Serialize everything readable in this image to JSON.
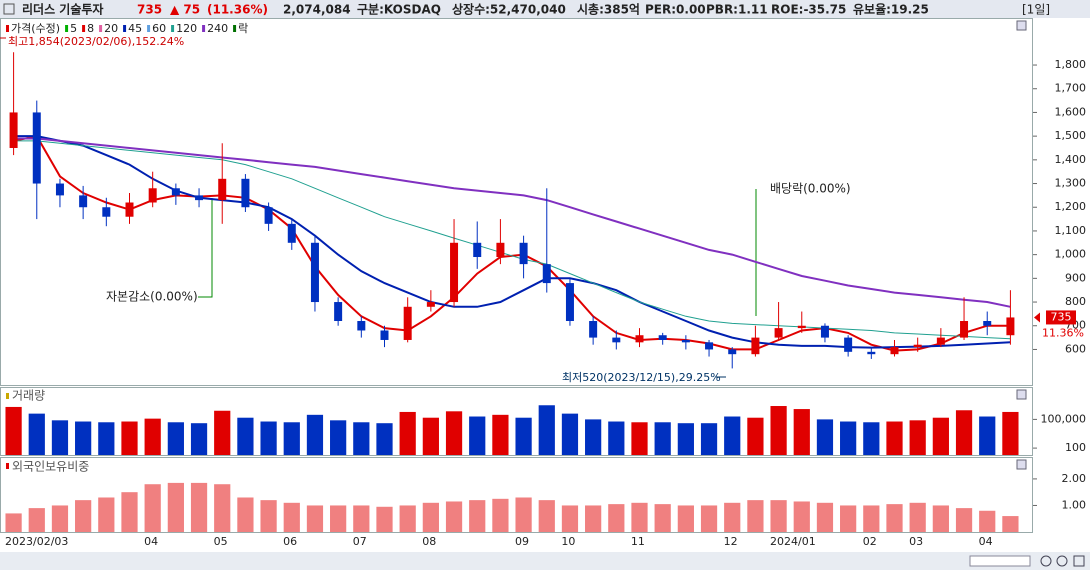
{
  "header": {
    "name": "리더스 기술투자",
    "price": "735",
    "change": "▲ 75",
    "change_pct": "(11.36%)",
    "volume": "2,074,084",
    "market": "구분:KOSDAQ",
    "shares": "상장수:52,470,040",
    "cap": "시총:385억",
    "per": "PER:0.00",
    "pbr": "PBR:1.11",
    "roe": "ROE:-35.75",
    "reserve": "유보율:19.25",
    "period": "[1일]"
  },
  "chart_data": [
    {
      "type": "candlestick",
      "legend": [
        {
          "label": "가격(수정)",
          "color": "#e00000"
        },
        {
          "label": "5",
          "color": "#00b000"
        },
        {
          "label": "8",
          "color": "#e00000"
        },
        {
          "label": "20",
          "color": "#e060a0"
        },
        {
          "label": "45",
          "color": "#0020b0"
        },
        {
          "label": "60",
          "color": "#60a0e0"
        },
        {
          "label": "120",
          "color": "#20a090"
        },
        {
          "label": "240",
          "color": "#8030c0"
        },
        {
          "label": "락",
          "color": "#007000"
        }
      ],
      "categories": [
        "2023/02/03",
        null,
        null,
        null,
        null,
        null,
        "04",
        null,
        null,
        "05",
        null,
        null,
        "06",
        null,
        null,
        "07",
        null,
        null,
        "08",
        null,
        null,
        null,
        "09",
        null,
        "10",
        null,
        null,
        "11",
        null,
        null,
        null,
        "12",
        null,
        "2024/01",
        null,
        null,
        null,
        "02",
        null,
        "03",
        null,
        null,
        "04",
        null
      ],
      "open": [
        1450,
        1600,
        1300,
        1250,
        1200,
        1160,
        1220,
        1280,
        1250,
        1230,
        1320,
        1200,
        1130,
        1050,
        800,
        720,
        680,
        640,
        780,
        800,
        1050,
        990,
        1050,
        960,
        880,
        720,
        650,
        630,
        660,
        640,
        630,
        600,
        580,
        650,
        690,
        700,
        650,
        590,
        580,
        610,
        620,
        650,
        720,
        660
      ],
      "high": [
        1854,
        1650,
        1320,
        1290,
        1240,
        1260,
        1350,
        1300,
        1280,
        1470,
        1340,
        1220,
        1150,
        1080,
        820,
        740,
        700,
        820,
        850,
        1150,
        1140,
        1150,
        1080,
        1280,
        900,
        740,
        680,
        690,
        670,
        660,
        640,
        610,
        700,
        800,
        760,
        710,
        660,
        610,
        640,
        650,
        690,
        820,
        760,
        850
      ],
      "low": [
        1420,
        1150,
        1200,
        1150,
        1120,
        1130,
        1200,
        1210,
        1200,
        1130,
        1180,
        1100,
        1020,
        760,
        700,
        650,
        610,
        630,
        760,
        780,
        940,
        960,
        900,
        840,
        700,
        620,
        600,
        610,
        620,
        600,
        570,
        520,
        570,
        640,
        670,
        630,
        570,
        560,
        570,
        590,
        610,
        640,
        660,
        620
      ],
      "close": [
        1600,
        1300,
        1250,
        1200,
        1160,
        1220,
        1280,
        1250,
        1230,
        1320,
        1200,
        1130,
        1050,
        800,
        720,
        680,
        640,
        780,
        800,
        1050,
        990,
        1050,
        960,
        880,
        720,
        650,
        630,
        660,
        640,
        630,
        600,
        580,
        650,
        690,
        700,
        650,
        590,
        580,
        610,
        620,
        650,
        720,
        700,
        735
      ],
      "up_color": "#e00000",
      "down_color": "#0030c0",
      "series": [
        {
          "color": "#e00000",
          "width": 2,
          "values": [
            1480,
            1500,
            1330,
            1260,
            1220,
            1190,
            1230,
            1250,
            1245,
            1250,
            1240,
            1190,
            1110,
            950,
            830,
            740,
            690,
            680,
            740,
            820,
            920,
            990,
            1000,
            950,
            850,
            740,
            670,
            640,
            645,
            640,
            625,
            600,
            600,
            640,
            680,
            690,
            670,
            620,
            595,
            600,
            625,
            670,
            700,
            700
          ]
        },
        {
          "color": "#0020b0",
          "width": 2,
          "values": [
            1500,
            1500,
            1480,
            1460,
            1420,
            1380,
            1320,
            1270,
            1240,
            1230,
            1220,
            1200,
            1150,
            1080,
            1000,
            930,
            880,
            840,
            800,
            780,
            780,
            800,
            850,
            900,
            900,
            880,
            850,
            800,
            760,
            720,
            680,
            650,
            630,
            620,
            615,
            615,
            610,
            608,
            610,
            612,
            615,
            620,
            625,
            630
          ]
        },
        {
          "color": "#20a090",
          "width": 1,
          "values": [
            1480,
            1480,
            1470,
            1460,
            1450,
            1440,
            1430,
            1420,
            1410,
            1400,
            1380,
            1350,
            1320,
            1280,
            1240,
            1200,
            1160,
            1130,
            1100,
            1070,
            1040,
            1010,
            980,
            960,
            920,
            880,
            840,
            800,
            770,
            740,
            720,
            710,
            705,
            700,
            695,
            690,
            685,
            680,
            670,
            665,
            660,
            655,
            650,
            645
          ]
        },
        {
          "color": "#8030c0",
          "width": 2,
          "values": [
            1490,
            1490,
            1480,
            1470,
            1460,
            1450,
            1440,
            1430,
            1420,
            1410,
            1400,
            1390,
            1380,
            1370,
            1355,
            1340,
            1325,
            1310,
            1295,
            1280,
            1270,
            1260,
            1250,
            1230,
            1200,
            1170,
            1140,
            1110,
            1080,
            1050,
            1020,
            1000,
            970,
            940,
            910,
            890,
            870,
            855,
            840,
            830,
            820,
            810,
            800,
            780
          ]
        }
      ],
      "ylim": [
        450,
        1990
      ],
      "yticks": [
        600,
        700,
        800,
        900,
        {
          "value": 1000,
          "label": "1,000"
        },
        {
          "value": 1100,
          "label": "1,100"
        },
        {
          "value": 1200,
          "label": "1,200"
        },
        {
          "value": 1300,
          "label": "1,300"
        },
        {
          "value": 1400,
          "label": "1,400"
        },
        {
          "value": 1500,
          "label": "1,500"
        },
        {
          "value": 1600,
          "label": "1,600"
        },
        {
          "value": 1700,
          "label": "1,700"
        },
        {
          "value": 1800,
          "label": "1,800"
        }
      ],
      "annotations": {
        "high": "최고1,854(2023/02/06),152.24%",
        "capital": "자본감소(0.00%)",
        "dividend": "배당락(0.00%)",
        "low": "최저520(2023/12/15),29.25%"
      },
      "current_pct": "11.36%"
    },
    {
      "type": "bar",
      "title": "거래량",
      "log": true,
      "values": [
        2000000,
        400000,
        80000,
        60000,
        50000,
        60000,
        120000,
        50000,
        40000,
        800000,
        150000,
        60000,
        50000,
        300000,
        80000,
        50000,
        40000,
        600000,
        150000,
        700000,
        200000,
        300000,
        150000,
        3000000,
        400000,
        100000,
        60000,
        50000,
        50000,
        40000,
        40000,
        200000,
        150000,
        2500000,
        1200000,
        100000,
        60000,
        50000,
        60000,
        80000,
        150000,
        900000,
        200000,
        600000
      ],
      "ylim": [
        19,
        150000000
      ],
      "yticks": [
        100,
        {
          "value": 100000,
          "label": "100,000"
        }
      ]
    },
    {
      "type": "bar",
      "title": "외국인보유비중",
      "color": "#f08080",
      "values": [
        0.7,
        0.9,
        1.0,
        1.2,
        1.3,
        1.5,
        1.8,
        1.85,
        1.85,
        1.8,
        1.3,
        1.2,
        1.1,
        1.0,
        1.0,
        1.0,
        0.95,
        1.0,
        1.1,
        1.15,
        1.2,
        1.25,
        1.3,
        1.2,
        1.0,
        1.0,
        1.05,
        1.1,
        1.05,
        1.0,
        1.0,
        1.1,
        1.2,
        1.2,
        1.15,
        1.1,
        1.0,
        1.0,
        1.05,
        1.1,
        1.0,
        0.9,
        0.8,
        0.6
      ],
      "ylim": [
        0,
        2.75
      ],
      "yticks": [
        {
          "value": 1,
          "label": "1.00"
        },
        {
          "value": 2,
          "label": "2.00"
        }
      ]
    }
  ]
}
